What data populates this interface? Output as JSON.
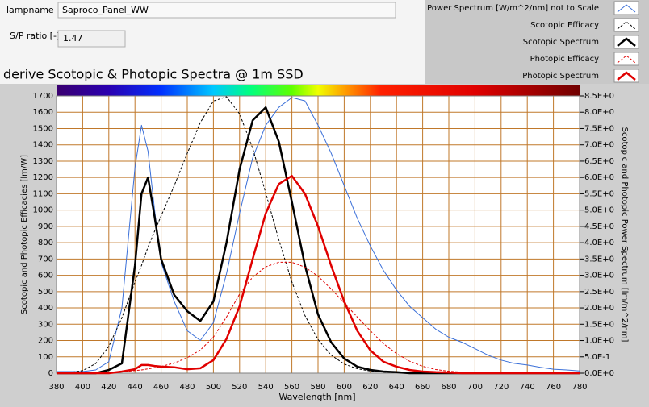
{
  "controls": {
    "lampname_label": "lampname",
    "lampname_value": "Saproco_Panel_WW",
    "sp_label": "S/P ratio [-]",
    "sp_value": "1.47"
  },
  "chart_data": {
    "type": "line",
    "title": "derive Scotopic & Photopic Spectra @ 1m SSD",
    "x_label": "Wavelength [nm]",
    "y_label": "Scotopic and Photopic Efficacies [lm/W]",
    "y2_label": "Scotopic and Photopic Power Spectrum [lm/m^2/nm]",
    "grid": true,
    "x": [
      380,
      390,
      400,
      410,
      420,
      430,
      440,
      445,
      450,
      455,
      460,
      470,
      480,
      490,
      500,
      510,
      520,
      530,
      540,
      550,
      560,
      570,
      580,
      590,
      600,
      610,
      620,
      630,
      640,
      650,
      660,
      670,
      680,
      690,
      700,
      710,
      720,
      730,
      740,
      750,
      760,
      770,
      780
    ],
    "xlim": [
      380,
      780
    ],
    "xticks": [
      380,
      400,
      420,
      440,
      460,
      480,
      500,
      520,
      540,
      560,
      580,
      600,
      620,
      640,
      660,
      680,
      700,
      720,
      740,
      760,
      780
    ],
    "ylim": [
      0,
      1700
    ],
    "yticks": [
      0,
      100,
      200,
      300,
      400,
      500,
      600,
      700,
      800,
      900,
      1000,
      1100,
      1200,
      1300,
      1400,
      1500,
      1600,
      1700
    ],
    "y2lim": [
      0,
      8.5
    ],
    "y2ticks": [
      {
        "value": 0,
        "label": "0.0E+0"
      },
      {
        "value": 0.5,
        "label": "5.0E-1"
      },
      {
        "value": 1,
        "label": "1.0E+0"
      },
      {
        "value": 1.5,
        "label": "1.5E+0"
      },
      {
        "value": 2,
        "label": "2.0E+0"
      },
      {
        "value": 2.5,
        "label": "2.5E+0"
      },
      {
        "value": 3,
        "label": "3.0E+0"
      },
      {
        "value": 3.5,
        "label": "3.5E+0"
      },
      {
        "value": 4,
        "label": "4.0E+0"
      },
      {
        "value": 4.5,
        "label": "4.5E+0"
      },
      {
        "value": 5,
        "label": "5.0E+0"
      },
      {
        "value": 5.5,
        "label": "5.5E+0"
      },
      {
        "value": 6,
        "label": "6.0E+0"
      },
      {
        "value": 6.5,
        "label": "6.5E+0"
      },
      {
        "value": 7,
        "label": "7.0E+0"
      },
      {
        "value": 7.5,
        "label": "7.5E+0"
      },
      {
        "value": 8,
        "label": "8.0E+0"
      },
      {
        "value": 8.5,
        "label": "8.5E+0"
      }
    ],
    "series": [
      {
        "name": "Power Spectrum [W/m^2/nm] not to Scale",
        "color": "#3a6fd8",
        "axis": "y2",
        "dash": false,
        "thick": false,
        "values": [
          0.05,
          0.05,
          0.05,
          0.1,
          0.35,
          2.0,
          6.3,
          7.6,
          6.8,
          5.0,
          3.4,
          2.2,
          1.3,
          1.0,
          1.55,
          3.05,
          4.9,
          6.6,
          7.6,
          8.15,
          8.45,
          8.35,
          7.6,
          6.75,
          5.75,
          4.75,
          3.9,
          3.15,
          2.55,
          2.05,
          1.7,
          1.35,
          1.1,
          0.95,
          0.75,
          0.55,
          0.4,
          0.3,
          0.25,
          0.18,
          0.12,
          0.1,
          0.07
        ]
      },
      {
        "name": "Scotopic Efficacy",
        "color": "#000000",
        "axis": "y",
        "dash": true,
        "thick": false,
        "values": [
          1,
          4,
          16,
          59,
          164,
          340,
          558,
          660,
          774,
          870,
          964,
          1149,
          1348,
          1537,
          1669,
          1695,
          1590,
          1379,
          1105,
          818,
          559,
          353,
          206,
          111,
          56,
          27,
          13,
          6,
          3,
          1,
          1,
          0,
          0,
          0,
          0,
          0,
          0,
          0,
          0,
          0,
          0,
          0,
          0
        ]
      },
      {
        "name": "Scotopic Spectrum",
        "color": "#000000",
        "axis": "y2",
        "dash": false,
        "thick": true,
        "values": [
          0,
          0,
          0,
          0,
          0.1,
          0.3,
          3.3,
          5.5,
          6.0,
          4.8,
          3.5,
          2.4,
          1.9,
          1.6,
          2.2,
          4.0,
          6.25,
          7.75,
          8.15,
          7.1,
          5.25,
          3.3,
          1.8,
          0.95,
          0.45,
          0.2,
          0.1,
          0.05,
          0.03,
          0,
          0,
          0,
          0,
          0,
          0,
          0,
          0,
          0,
          0,
          0,
          0,
          0,
          0
        ]
      },
      {
        "name": "Photopic Efficacy",
        "color": "#e00000",
        "axis": "y",
        "dash": true,
        "thick": false,
        "values": [
          0,
          0,
          0,
          1,
          3,
          8,
          16,
          20,
          26,
          33,
          41,
          62,
          95,
          142,
          221,
          344,
          485,
          589,
          652,
          680,
          680,
          650,
          594,
          517,
          431,
          344,
          260,
          181,
          120,
          73,
          42,
          22,
          12,
          6,
          3,
          1,
          1,
          0,
          0,
          0,
          0,
          0,
          0
        ]
      },
      {
        "name": "Photopic Spectrum",
        "color": "#e00000",
        "axis": "y2",
        "dash": false,
        "thick": true,
        "values": [
          0,
          0,
          0,
          0,
          0,
          0.05,
          0.12,
          0.25,
          0.25,
          0.22,
          0.2,
          0.18,
          0.12,
          0.15,
          0.4,
          1.05,
          2.05,
          3.5,
          4.9,
          5.8,
          6.05,
          5.5,
          4.5,
          3.3,
          2.2,
          1.3,
          0.7,
          0.35,
          0.2,
          0.1,
          0.05,
          0.03,
          0.02,
          0,
          0,
          0,
          0,
          0,
          0,
          0,
          0,
          0,
          0
        ]
      }
    ]
  }
}
